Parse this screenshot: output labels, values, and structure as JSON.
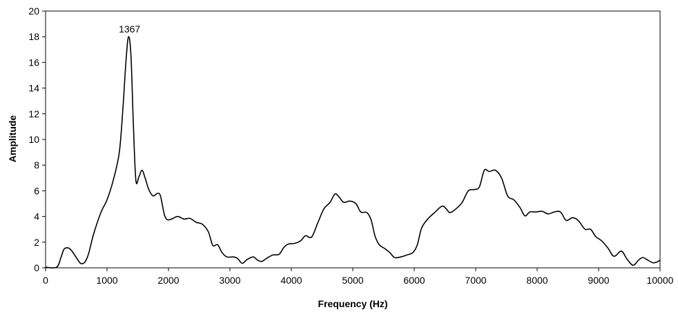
{
  "chart_data": {
    "type": "line",
    "title": "",
    "xlabel": "Frequency (Hz)",
    "ylabel": "Amplitude",
    "xlim": [
      0,
      10000
    ],
    "ylim": [
      0,
      20
    ],
    "xticks": [
      0,
      1000,
      2000,
      3000,
      4000,
      5000,
      6000,
      7000,
      8000,
      9000,
      10000
    ],
    "yticks": [
      0,
      2,
      4,
      6,
      8,
      10,
      12,
      14,
      16,
      18,
      20
    ],
    "grid": false,
    "legend": "none",
    "annotations": [
      {
        "text": "1367",
        "x": 1367,
        "y": 18
      }
    ],
    "series": [
      {
        "color": "#000000",
        "points": [
          [
            0,
            0.05
          ],
          [
            180,
            0.05
          ],
          [
            250,
            0.8
          ],
          [
            300,
            1.45
          ],
          [
            370,
            1.55
          ],
          [
            430,
            1.3
          ],
          [
            500,
            0.8
          ],
          [
            570,
            0.35
          ],
          [
            640,
            0.45
          ],
          [
            700,
            1.1
          ],
          [
            780,
            2.6
          ],
          [
            900,
            4.3
          ],
          [
            1000,
            5.3
          ],
          [
            1100,
            6.8
          ],
          [
            1200,
            9.0
          ],
          [
            1260,
            12.5
          ],
          [
            1310,
            16.2
          ],
          [
            1350,
            18.0
          ],
          [
            1390,
            16.5
          ],
          [
            1430,
            11.0
          ],
          [
            1470,
            6.8
          ],
          [
            1520,
            7.1
          ],
          [
            1570,
            7.6
          ],
          [
            1620,
            7.0
          ],
          [
            1680,
            6.1
          ],
          [
            1750,
            5.6
          ],
          [
            1820,
            5.8
          ],
          [
            1870,
            5.6
          ],
          [
            1930,
            4.2
          ],
          [
            1980,
            3.75
          ],
          [
            2050,
            3.8
          ],
          [
            2150,
            4.0
          ],
          [
            2250,
            3.8
          ],
          [
            2350,
            3.85
          ],
          [
            2450,
            3.55
          ],
          [
            2550,
            3.4
          ],
          [
            2650,
            2.8
          ],
          [
            2720,
            1.75
          ],
          [
            2800,
            1.8
          ],
          [
            2870,
            1.2
          ],
          [
            2950,
            0.85
          ],
          [
            3050,
            0.85
          ],
          [
            3120,
            0.75
          ],
          [
            3200,
            0.35
          ],
          [
            3280,
            0.65
          ],
          [
            3380,
            0.85
          ],
          [
            3450,
            0.6
          ],
          [
            3520,
            0.5
          ],
          [
            3600,
            0.75
          ],
          [
            3700,
            1.0
          ],
          [
            3800,
            1.05
          ],
          [
            3880,
            1.6
          ],
          [
            3950,
            1.85
          ],
          [
            4050,
            1.9
          ],
          [
            4150,
            2.1
          ],
          [
            4230,
            2.5
          ],
          [
            4330,
            2.4
          ],
          [
            4430,
            3.5
          ],
          [
            4530,
            4.6
          ],
          [
            4630,
            5.1
          ],
          [
            4710,
            5.75
          ],
          [
            4780,
            5.5
          ],
          [
            4850,
            5.1
          ],
          [
            4950,
            5.2
          ],
          [
            5050,
            5.0
          ],
          [
            5130,
            4.35
          ],
          [
            5230,
            4.3
          ],
          [
            5300,
            3.7
          ],
          [
            5360,
            2.5
          ],
          [
            5430,
            1.8
          ],
          [
            5520,
            1.5
          ],
          [
            5600,
            1.2
          ],
          [
            5680,
            0.8
          ],
          [
            5780,
            0.85
          ],
          [
            5880,
            1.0
          ],
          [
            5980,
            1.2
          ],
          [
            6050,
            1.8
          ],
          [
            6120,
            3.1
          ],
          [
            6220,
            3.8
          ],
          [
            6330,
            4.3
          ],
          [
            6450,
            4.8
          ],
          [
            6520,
            4.6
          ],
          [
            6580,
            4.3
          ],
          [
            6680,
            4.6
          ],
          [
            6780,
            5.1
          ],
          [
            6880,
            6.0
          ],
          [
            6980,
            6.1
          ],
          [
            7060,
            6.3
          ],
          [
            7140,
            7.6
          ],
          [
            7220,
            7.5
          ],
          [
            7320,
            7.6
          ],
          [
            7420,
            7.0
          ],
          [
            7520,
            5.6
          ],
          [
            7620,
            5.3
          ],
          [
            7720,
            4.7
          ],
          [
            7800,
            4.05
          ],
          [
            7880,
            4.35
          ],
          [
            7980,
            4.35
          ],
          [
            8080,
            4.4
          ],
          [
            8180,
            4.2
          ],
          [
            8280,
            4.35
          ],
          [
            8380,
            4.35
          ],
          [
            8470,
            3.7
          ],
          [
            8570,
            3.9
          ],
          [
            8640,
            3.8
          ],
          [
            8700,
            3.5
          ],
          [
            8780,
            3.0
          ],
          [
            8870,
            3.0
          ],
          [
            8950,
            2.45
          ],
          [
            9050,
            2.1
          ],
          [
            9150,
            1.55
          ],
          [
            9250,
            0.9
          ],
          [
            9370,
            1.3
          ],
          [
            9460,
            0.7
          ],
          [
            9560,
            0.2
          ],
          [
            9650,
            0.6
          ],
          [
            9720,
            0.8
          ],
          [
            9800,
            0.6
          ],
          [
            9880,
            0.4
          ],
          [
            9950,
            0.45
          ],
          [
            10000,
            0.6
          ]
        ]
      }
    ]
  }
}
